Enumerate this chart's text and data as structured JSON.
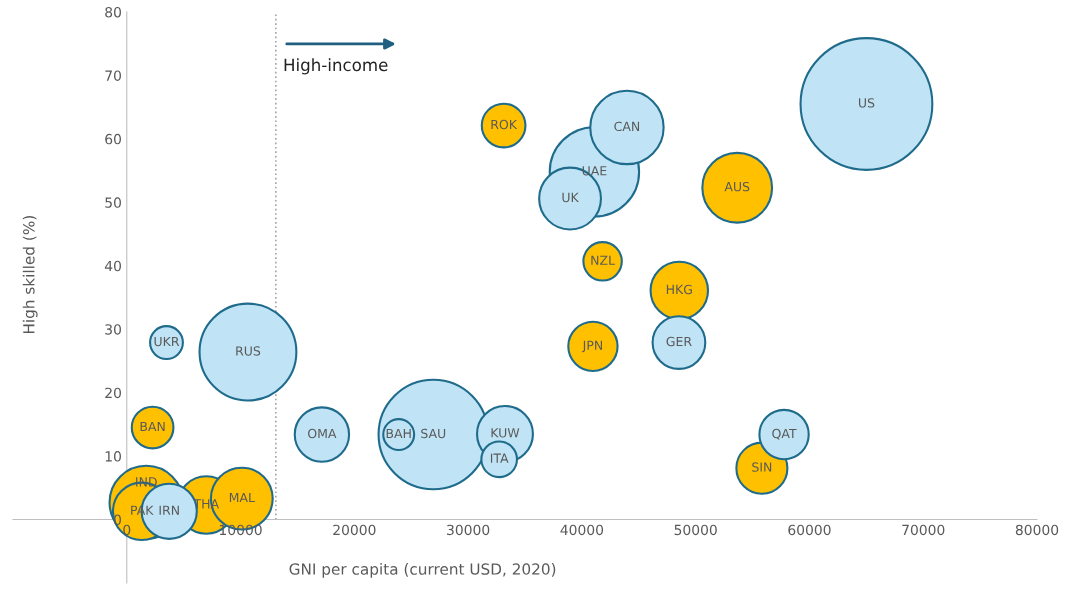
{
  "chart_data": {
    "type": "bubble",
    "xlabel": "GNI per capita (current USD, 2020)",
    "ylabel": "High skilled (%)",
    "xlim": [
      -10000,
      80000
    ],
    "xticks": [
      0,
      10000,
      20000,
      30000,
      40000,
      50000,
      60000,
      70000,
      80000
    ],
    "ylim": [
      -10,
      80
    ],
    "yticks": [
      0,
      10,
      20,
      30,
      40,
      50,
      60,
      70,
      80
    ],
    "series": [
      {
        "color": "#ffc000",
        "x": [
          2270,
          1710,
          1310,
          6990,
          10110,
          33120,
          53650,
          41820,
          48560,
          40970,
          55820
        ],
        "values": [
          14.5,
          2.7,
          1.3,
          2.3,
          3.3,
          62.1,
          52.3,
          40.7,
          36.1,
          27.3,
          8.1
        ],
        "sizes": [
          0.1,
          0.31,
          0.19,
          0.19,
          0.22,
          0.11,
          0.28,
          0.085,
          0.19,
          0.14,
          0.15
        ]
      },
      {
        "color": "#c0e4f5",
        "x": [
          3490,
          10650,
          3730,
          17150,
          26940,
          23900,
          33240,
          32730,
          65010,
          41100,
          43960,
          38960,
          48530,
          57770
        ],
        "values": [
          27.9,
          26.4,
          1.3,
          13.4,
          13.4,
          13.4,
          13.5,
          9.5,
          65.5,
          54.8,
          61.8,
          50.6,
          27.9,
          13.4
        ],
        "sizes": [
          0.062,
          0.54,
          0.175,
          0.17,
          0.69,
          0.055,
          0.18,
          0.073,
          1,
          0.46,
          0.31,
          0.22,
          0.16,
          0.14
        ]
      }
    ],
    "ref_lines": [
      {
        "axis": "x",
        "value": 13100,
        "label": "High-income",
        "line_style": "dotted",
        "color": "#a6a6a6"
      }
    ],
    "annotations": [
      {
        "text": "BAN",
        "x": 2270,
        "y": 14.5
      },
      {
        "text": "PAK",
        "x": 1310,
        "y": 1.3
      },
      {
        "text": "IRN",
        "x": 3730,
        "y": 1.3
      },
      {
        "text": "THA",
        "x": 6990,
        "y": 2.3
      },
      {
        "text": "IND",
        "x": 1710,
        "y": 2.7
      },
      {
        "text": "MAL",
        "x": 10110,
        "y": 3.3
      },
      {
        "text": "ROK",
        "x": 33120,
        "y": 62.1
      },
      {
        "text": "AUS",
        "x": 53650,
        "y": 52.3
      },
      {
        "text": "NZL",
        "x": 41820,
        "y": 40.7
      },
      {
        "text": "HKG",
        "x": 48560,
        "y": 36.1
      },
      {
        "text": "JPN",
        "x": 40970,
        "y": 27.3
      },
      {
        "text": "SIN",
        "x": 55820,
        "y": 8.1
      },
      {
        "text": "UKR",
        "x": 3490,
        "y": 27.9
      },
      {
        "text": "RUS",
        "x": 10650,
        "y": 26.4
      },
      {
        "text": "OMA",
        "x": 17150,
        "y": 13.4
      },
      {
        "text": "SAU",
        "x": 26940,
        "y": 13.4
      },
      {
        "text": "BAH",
        "x": 23900,
        "y": 13.4
      },
      {
        "text": "KUW",
        "x": 33240,
        "y": 13.5
      },
      {
        "text": "ITA",
        "x": 32730,
        "y": 9.5
      },
      {
        "text": "US",
        "x": 65010,
        "y": 65.5
      },
      {
        "text": "UAE",
        "x": 41100,
        "y": 54.8
      },
      {
        "text": "CAN",
        "x": 43960,
        "y": 61.8
      },
      {
        "text": "UK",
        "x": 38960,
        "y": 50.6
      },
      {
        "text": "GER",
        "x": 48530,
        "y": 27.9
      },
      {
        "text": "QAT",
        "x": 57770,
        "y": 13.4
      }
    ]
  }
}
